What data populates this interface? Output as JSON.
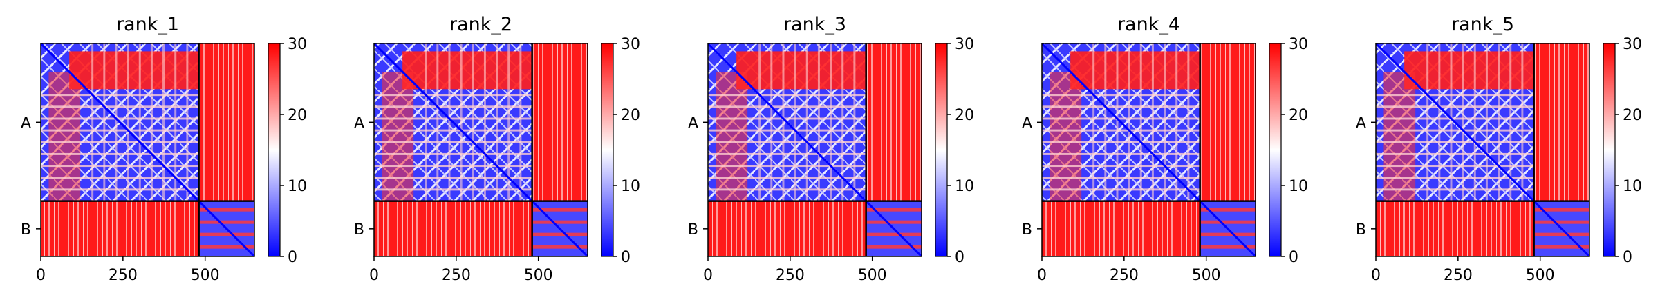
{
  "chart_data": {
    "type": "heatmap",
    "colormap": [
      "#0000ff",
      "#ffffff",
      "#ff0000"
    ],
    "colorbar": {
      "min": 0,
      "max": 30,
      "ticks": [
        0,
        10,
        20,
        30
      ]
    },
    "x_ticks": [
      0,
      250,
      500
    ],
    "x_range": [
      0,
      650
    ],
    "chain_labels": [
      "A",
      "B"
    ],
    "chain_A_length": 481,
    "total_length": 650,
    "panels": [
      {
        "title": "rank_1"
      },
      {
        "title": "rank_2"
      },
      {
        "title": "rank_3"
      },
      {
        "title": "rank_4"
      },
      {
        "title": "rank_5"
      }
    ]
  }
}
